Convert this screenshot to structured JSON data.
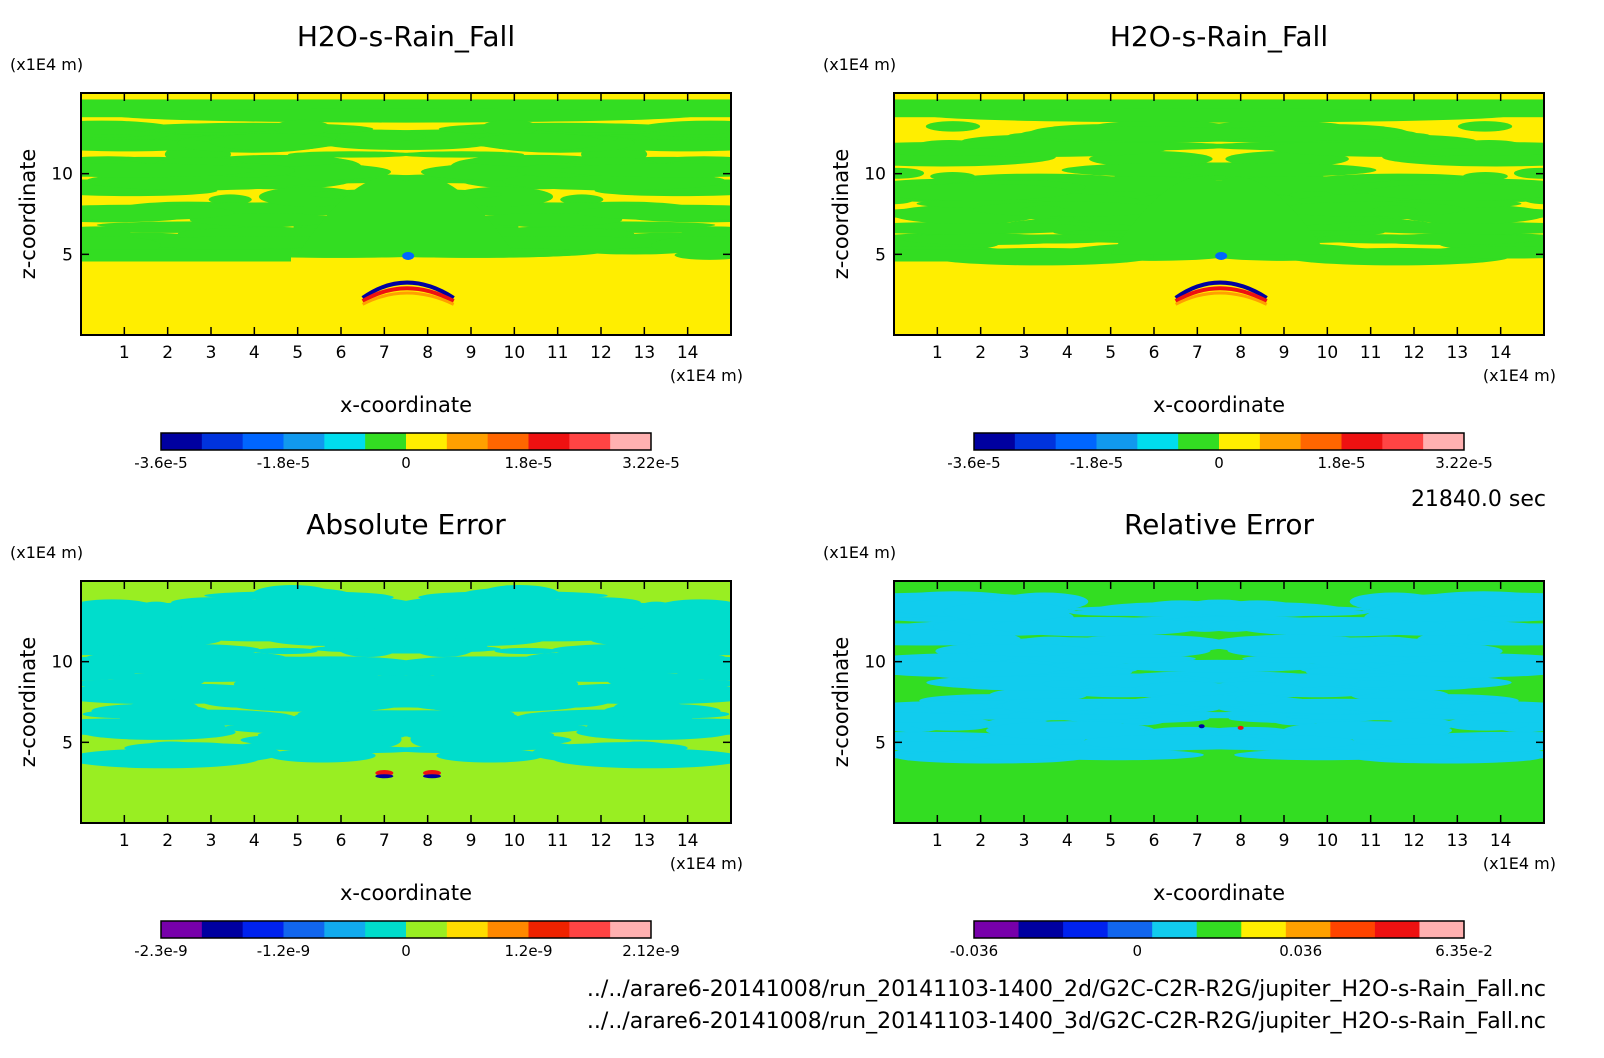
{
  "page": {
    "time_label": "21840.0 sec",
    "footer_lines": [
      "../../arare6-20141008/run_20141103-1400_2d/G2C-C2R-R2G/jupiter_H2O-s-Rain_Fall.nc",
      "../../arare6-20141008/run_20141103-1400_3d/G2C-C2R-R2G/jupiter_H2O-s-Rain_Fall.nc"
    ]
  },
  "chart_data": [
    {
      "type": "heatmap",
      "title": "H2O-s-Rain_Fall",
      "xlabel": "x-coordinate",
      "ylabel": "z-coordinate",
      "x_unit": "(x1E4 m)",
      "y_unit": "(x1E4 m)",
      "x_ticks": [
        "1",
        "2",
        "3",
        "4",
        "5",
        "6",
        "7",
        "8",
        "9",
        "10",
        "11",
        "12",
        "13",
        "14"
      ],
      "y_ticks": [
        "5",
        "10"
      ],
      "xlim": [
        0,
        15
      ],
      "ylim": [
        0,
        15
      ],
      "colorbar": {
        "colors": [
          "#0000a0",
          "#0033dd",
          "#0066ff",
          "#1199ee",
          "#00ddee",
          "#33dd22",
          "#ffee00",
          "#ffa000",
          "#ff6600",
          "#ee1111",
          "#ff4444",
          "#ffb0b0"
        ],
        "tick_labels": [
          "-3.6e-5",
          "-1.8e-5",
          "0",
          "1.8e-5",
          "3.22e-5"
        ]
      },
      "field": {
        "background": "#ffee00",
        "bands": "#33dd22",
        "features": [
          "#0000a0",
          "#0066ff",
          "#ee1111",
          "#ffa000"
        ]
      }
    },
    {
      "type": "heatmap",
      "title": "H2O-s-Rain_Fall",
      "xlabel": "x-coordinate",
      "ylabel": "z-coordinate",
      "x_unit": "(x1E4 m)",
      "y_unit": "(x1E4 m)",
      "x_ticks": [
        "1",
        "2",
        "3",
        "4",
        "5",
        "6",
        "7",
        "8",
        "9",
        "10",
        "11",
        "12",
        "13",
        "14"
      ],
      "y_ticks": [
        "5",
        "10"
      ],
      "xlim": [
        0,
        15
      ],
      "ylim": [
        0,
        15
      ],
      "colorbar": {
        "colors": [
          "#0000a0",
          "#0033dd",
          "#0066ff",
          "#1199ee",
          "#00ddee",
          "#33dd22",
          "#ffee00",
          "#ffa000",
          "#ff6600",
          "#ee1111",
          "#ff4444",
          "#ffb0b0"
        ],
        "tick_labels": [
          "-3.6e-5",
          "-1.8e-5",
          "0",
          "1.8e-5",
          "3.22e-5"
        ]
      },
      "field": {
        "background": "#ffee00",
        "bands": "#33dd22",
        "features": [
          "#0000a0",
          "#0066ff",
          "#ee1111",
          "#ffa000"
        ]
      }
    },
    {
      "type": "heatmap",
      "title": "Absolute Error",
      "xlabel": "x-coordinate",
      "ylabel": "z-coordinate",
      "x_unit": "(x1E4 m)",
      "y_unit": "(x1E4 m)",
      "x_ticks": [
        "1",
        "2",
        "3",
        "4",
        "5",
        "6",
        "7",
        "8",
        "9",
        "10",
        "11",
        "12",
        "13",
        "14"
      ],
      "y_ticks": [
        "5",
        "10"
      ],
      "xlim": [
        0,
        15
      ],
      "ylim": [
        0,
        15
      ],
      "colorbar": {
        "colors": [
          "#7700aa",
          "#0000a0",
          "#0022ee",
          "#1166ee",
          "#11aaee",
          "#00ddcc",
          "#99ee22",
          "#ffdd00",
          "#ff8800",
          "#ee2200",
          "#ff4444",
          "#ffb0b0"
        ],
        "tick_labels": [
          "-2.3e-9",
          "-1.2e-9",
          "0",
          "1.2e-9",
          "2.12e-9"
        ]
      },
      "field": {
        "background": "#99ee22",
        "bands": "#00ddcc",
        "features": [
          "#ee1111",
          "#0000a0"
        ]
      }
    },
    {
      "type": "heatmap",
      "title": "Relative Error",
      "xlabel": "x-coordinate",
      "ylabel": "z-coordinate",
      "x_unit": "(x1E4 m)",
      "y_unit": "(x1E4 m)",
      "x_ticks": [
        "1",
        "2",
        "3",
        "4",
        "5",
        "6",
        "7",
        "8",
        "9",
        "10",
        "11",
        "12",
        "13",
        "14"
      ],
      "y_ticks": [
        "5",
        "10"
      ],
      "xlim": [
        0,
        15
      ],
      "ylim": [
        0,
        15
      ],
      "colorbar": {
        "colors": [
          "#7700aa",
          "#0000a0",
          "#0022ee",
          "#1166ee",
          "#11ccee",
          "#33dd22",
          "#ffee00",
          "#ffa000",
          "#ff4400",
          "#ee1111",
          "#ffb0b0"
        ],
        "tick_labels": [
          "-0.036",
          "0",
          "0.036",
          "6.35e-2"
        ]
      },
      "field": {
        "background": "#33dd22",
        "bands": "#11ccee",
        "features": [
          "#0000a0",
          "#ee1111"
        ]
      }
    }
  ]
}
